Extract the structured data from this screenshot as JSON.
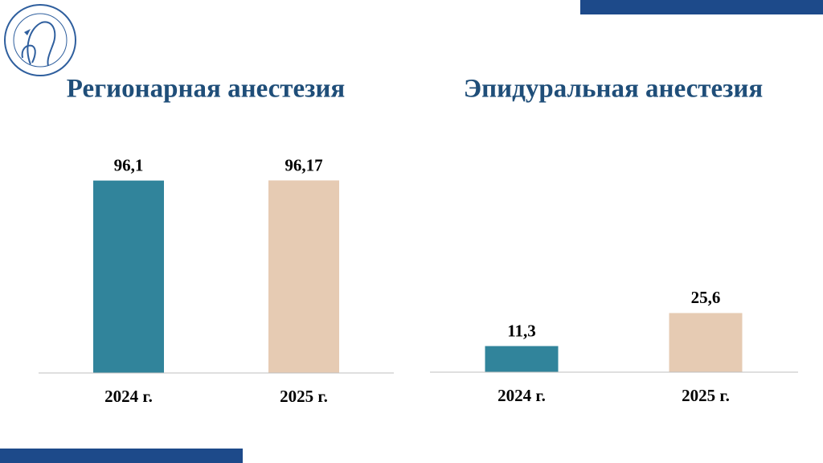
{
  "chart_data": [
    {
      "type": "bar",
      "title": "Регионарная анестезия",
      "categories": [
        "2024 г.",
        "2025 г."
      ],
      "values": [
        96.1,
        96.17
      ],
      "value_labels": [
        "96,1",
        "96,17"
      ],
      "colors": [
        "#31849b",
        "#e6cbb3"
      ],
      "ylim": [
        0,
        110
      ]
    },
    {
      "type": "bar",
      "title": "Эпидуральная анестезия",
      "categories": [
        "2024 г.",
        "2025 г."
      ],
      "values": [
        11.3,
        25.6
      ],
      "value_labels": [
        "11,3",
        "25,6"
      ],
      "colors": [
        "#31849b",
        "#e6cbb3"
      ],
      "ylim": [
        0,
        95
      ]
    }
  ]
}
